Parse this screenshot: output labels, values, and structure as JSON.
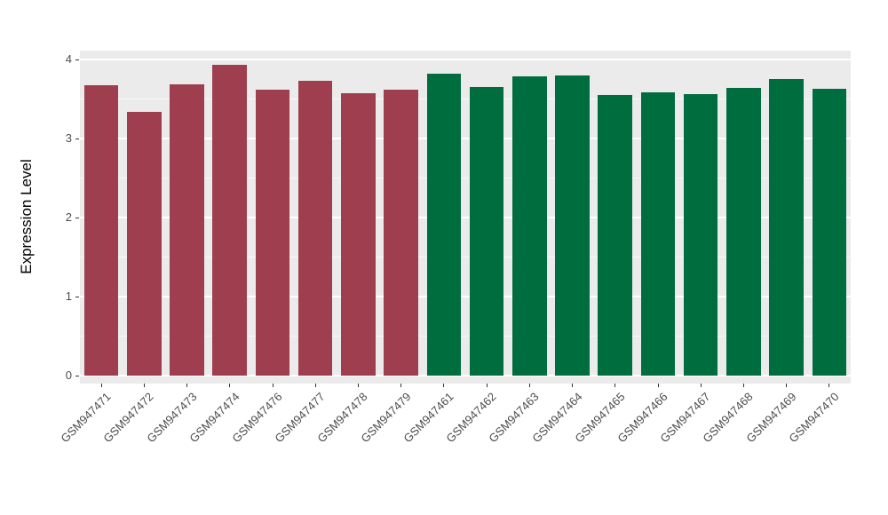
{
  "chart_data": {
    "type": "bar",
    "title": "",
    "xlabel": "",
    "ylabel": "Expression Level",
    "ylim": [
      0,
      4
    ],
    "yticks": [
      0,
      1,
      2,
      3,
      4
    ],
    "grid": true,
    "legend_position": "none",
    "panel_bg": "#ebebeb",
    "grid_color": "#ffffff",
    "group_colors": {
      "group1": "#9e3e4e",
      "group2": "#006d3f"
    },
    "categories": [
      "GSM947471",
      "GSM947472",
      "GSM947473",
      "GSM947474",
      "GSM947476",
      "GSM947477",
      "GSM947478",
      "GSM947479",
      "GSM947461",
      "GSM947462",
      "GSM947463",
      "GSM947464",
      "GSM947465",
      "GSM947466",
      "GSM947467",
      "GSM947468",
      "GSM947469",
      "GSM947470"
    ],
    "values": [
      3.67,
      3.34,
      3.69,
      3.93,
      3.62,
      3.73,
      3.57,
      3.62,
      3.82,
      3.65,
      3.79,
      3.8,
      3.55,
      3.58,
      3.56,
      3.64,
      3.75,
      3.63
    ],
    "bar_groups": [
      "group1",
      "group1",
      "group1",
      "group1",
      "group1",
      "group1",
      "group1",
      "group1",
      "group2",
      "group2",
      "group2",
      "group2",
      "group2",
      "group2",
      "group2",
      "group2",
      "group2",
      "group2"
    ]
  }
}
